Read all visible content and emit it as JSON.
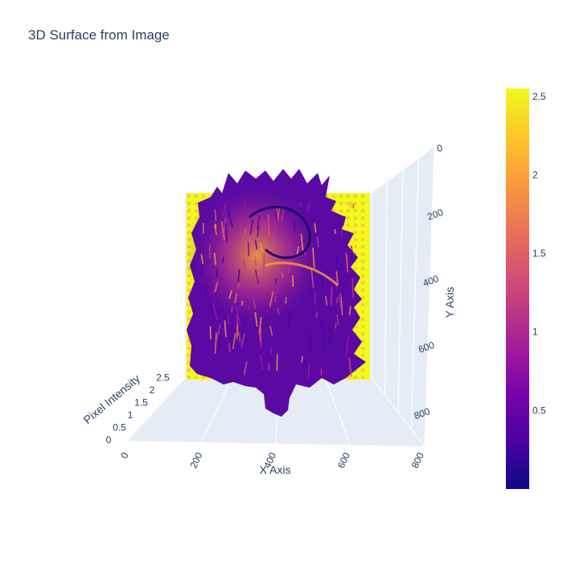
{
  "chart_data": {
    "type": "surface3d",
    "title": "3D Surface from Image",
    "xlabel": "X Axis",
    "ylabel": "Y Axis",
    "zlabel": "Pixel Intensity",
    "x_ticks": [
      "0",
      "200",
      "400",
      "600",
      "800"
    ],
    "y_ticks": [
      "0",
      "200",
      "400",
      "600",
      "800"
    ],
    "z_ticks": [
      "0",
      "0.5",
      "1",
      "1.5",
      "2",
      "2.5"
    ],
    "colorbar": {
      "colorscale": "plasma",
      "min": 0,
      "max": 2.55,
      "ticks": [
        "0.5",
        "1",
        "1.5",
        "2",
        "2.5"
      ]
    },
    "colors": {
      "plasma": [
        "#0d0887",
        "#46039f",
        "#7201a8",
        "#9c179e",
        "#bd3786",
        "#d8576b",
        "#ed7953",
        "#fb9f3a",
        "#fdca26",
        "#f0f921"
      ],
      "scene_bg": "#e5ecf6",
      "grid": "#ffffff",
      "text": "#2a3f5f"
    }
  }
}
